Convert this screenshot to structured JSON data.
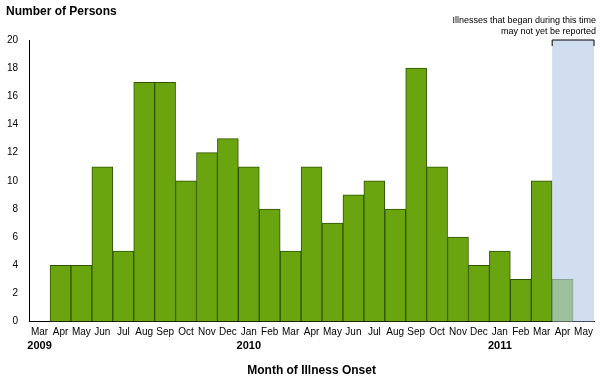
{
  "chart_data": {
    "type": "bar",
    "y_label": "Number of Persons",
    "x_label": "Month of Illness Onset",
    "categories": [
      "Mar",
      "Apr",
      "May",
      "Jun",
      "Jul",
      "Aug",
      "Sep",
      "Oct",
      "Nov",
      "Dec",
      "Jan",
      "Feb",
      "Mar",
      "Apr",
      "May",
      "Jun",
      "Jul",
      "Aug",
      "Sep",
      "Oct",
      "Nov",
      "Dec",
      "Jan",
      "Feb",
      "Mar",
      "Apr",
      "May"
    ],
    "values": [
      0,
      4,
      4,
      11,
      5,
      17,
      17,
      10,
      12,
      13,
      11,
      8,
      5,
      11,
      7,
      9,
      10,
      8,
      18,
      11,
      6,
      4,
      5,
      3,
      10,
      3,
      0
    ],
    "color": "#6aa50f",
    "ylim": [
      0,
      20
    ],
    "yticks": [
      0,
      2,
      4,
      6,
      8,
      10,
      12,
      14,
      16,
      18,
      20
    ],
    "grid": false,
    "year_labels": [
      {
        "category_index": 0,
        "label": "2009"
      },
      {
        "category_index": 10,
        "label": "2010"
      },
      {
        "category_index": 22,
        "label": "2011"
      }
    ],
    "annotations": [
      {
        "text": [
          "Illnesses that began during this time",
          "may not yet be reported"
        ],
        "from_index": 25,
        "to_index": 26
      }
    ]
  }
}
